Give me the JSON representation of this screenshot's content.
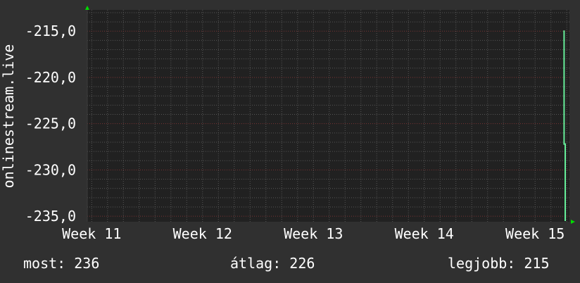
{
  "chart_data": {
    "type": "line",
    "ylabel": "onlinestream.live",
    "xlabel": "",
    "title": "",
    "x_ticks": [
      {
        "label": "Week 11",
        "value": 11
      },
      {
        "label": "Week 12",
        "value": 12
      },
      {
        "label": "Week 13",
        "value": 13
      },
      {
        "label": "Week 14",
        "value": 14
      },
      {
        "label": "Week 15",
        "value": 15
      }
    ],
    "y_ticks": [
      "-215,0",
      "-220,0",
      "-225,0",
      "-230,0",
      "-235,0"
    ],
    "y_tick_values": [
      -215,
      -220,
      -225,
      -230,
      -235
    ],
    "xlim": [
      10.96,
      15.31
    ],
    "ylim": [
      -235.6,
      -212.7
    ],
    "grid": true,
    "series": [
      {
        "color": "#66ee99",
        "x": [
          15.255,
          15.262,
          15.262,
          15.272,
          15.272
        ],
        "y": [
          -215,
          -215,
          -227.2,
          -227.2,
          -236
        ]
      }
    ],
    "colors": {
      "background": "#303030",
      "plot": "#212121",
      "minor_grid": "#555555",
      "major_grid": "#7a3333",
      "arrow": "#00dd00"
    }
  },
  "stats": {
    "current": "most: 236",
    "average": "átlag: 226",
    "max": "legjobb: 215"
  }
}
